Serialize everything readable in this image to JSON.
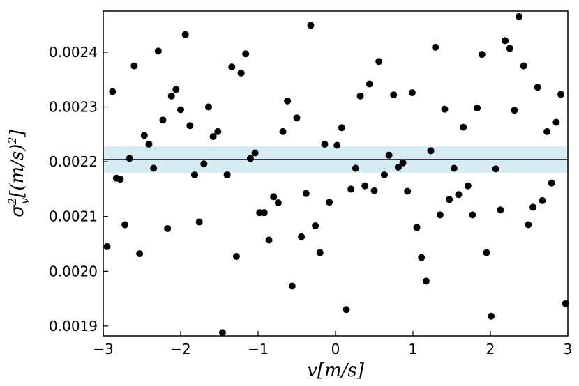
{
  "chart_data": {
    "type": "scatter",
    "xlabel": "v[m/s]",
    "ylabel": "σ_v^2[(m/s)^2]",
    "xlim": [
      -3,
      3
    ],
    "ylim": [
      0.001882,
      0.002475
    ],
    "x_ticks": [
      -3,
      -2,
      -1,
      0,
      1,
      2,
      3
    ],
    "x_tick_labels": [
      "−3",
      "−2",
      "−1",
      "0",
      "1",
      "2",
      "3"
    ],
    "y_ticks": [
      0.0019,
      0.002,
      0.0021,
      0.0022,
      0.0023,
      0.0024
    ],
    "y_tick_labels": [
      "0.0019",
      "0.0020",
      "0.0021",
      "0.0022",
      "0.0023",
      "0.0024"
    ],
    "grid": false,
    "mean_line": 0.002204,
    "band": [
      0.00218,
      0.002228
    ],
    "colors": {
      "points": "#000000",
      "line": "#000000",
      "band": "#add8e6"
    },
    "points": [
      [
        -2.95,
        0.002045
      ],
      [
        -2.88,
        0.002328
      ],
      [
        -2.83,
        0.00217
      ],
      [
        -2.78,
        0.002168
      ],
      [
        -2.72,
        0.002085
      ],
      [
        -2.66,
        0.002206
      ],
      [
        -2.6,
        0.002375
      ],
      [
        -2.53,
        0.002032
      ],
      [
        -2.47,
        0.002248
      ],
      [
        -2.41,
        0.002232
      ],
      [
        -2.35,
        0.002188
      ],
      [
        -2.29,
        0.002402
      ],
      [
        -2.23,
        0.002276
      ],
      [
        -2.17,
        0.002078
      ],
      [
        -2.12,
        0.00232
      ],
      [
        -2.06,
        0.002332
      ],
      [
        -2.0,
        0.002295
      ],
      [
        -1.94,
        0.002432
      ],
      [
        -1.88,
        0.002266
      ],
      [
        -1.82,
        0.002176
      ],
      [
        -1.76,
        0.00209
      ],
      [
        -1.7,
        0.002196
      ],
      [
        -1.64,
        0.0023
      ],
      [
        -1.58,
        0.002246
      ],
      [
        -1.52,
        0.002255
      ],
      [
        -1.46,
        0.001888
      ],
      [
        -1.4,
        0.002176
      ],
      [
        -1.34,
        0.002373
      ],
      [
        -1.28,
        0.002027
      ],
      [
        -1.22,
        0.002362
      ],
      [
        -1.16,
        0.002397
      ],
      [
        -1.1,
        0.002206
      ],
      [
        -1.04,
        0.002216
      ],
      [
        -0.98,
        0.002107
      ],
      [
        -0.92,
        0.002107
      ],
      [
        -0.86,
        0.002057
      ],
      [
        -0.8,
        0.002136
      ],
      [
        -0.74,
        0.002125
      ],
      [
        -0.68,
        0.002255
      ],
      [
        -0.62,
        0.002311
      ],
      [
        -0.56,
        0.001973
      ],
      [
        -0.5,
        0.00228
      ],
      [
        -0.44,
        0.002063
      ],
      [
        -0.38,
        0.002142
      ],
      [
        -0.32,
        0.002449
      ],
      [
        -0.26,
        0.002083
      ],
      [
        -0.2,
        0.002034
      ],
      [
        -0.14,
        0.002232
      ],
      [
        -0.08,
        0.002126
      ],
      [
        0.02,
        0.00223
      ],
      [
        0.08,
        0.002262
      ],
      [
        0.14,
        0.00193
      ],
      [
        0.2,
        0.00215
      ],
      [
        0.26,
        0.002188
      ],
      [
        0.32,
        0.00232
      ],
      [
        0.38,
        0.002156
      ],
      [
        0.44,
        0.002342
      ],
      [
        0.5,
        0.002147
      ],
      [
        0.56,
        0.002383
      ],
      [
        0.63,
        0.002176
      ],
      [
        0.69,
        0.002212
      ],
      [
        0.75,
        0.002322
      ],
      [
        0.81,
        0.00219
      ],
      [
        0.87,
        0.002198
      ],
      [
        0.93,
        0.002146
      ],
      [
        0.99,
        0.002326
      ],
      [
        1.05,
        0.00208
      ],
      [
        1.11,
        0.002025
      ],
      [
        1.17,
        0.001982
      ],
      [
        1.23,
        0.00222
      ],
      [
        1.29,
        0.002409
      ],
      [
        1.35,
        0.002103
      ],
      [
        1.41,
        0.002296
      ],
      [
        1.47,
        0.002131
      ],
      [
        1.53,
        0.002188
      ],
      [
        1.59,
        0.00214
      ],
      [
        1.65,
        0.002263
      ],
      [
        1.71,
        0.002156
      ],
      [
        1.77,
        0.002103
      ],
      [
        1.83,
        0.002298
      ],
      [
        1.89,
        0.002396
      ],
      [
        1.95,
        0.002034
      ],
      [
        2.01,
        0.001918
      ],
      [
        2.07,
        0.002187
      ],
      [
        2.13,
        0.002112
      ],
      [
        2.19,
        0.002421
      ],
      [
        2.25,
        0.002407
      ],
      [
        2.31,
        0.002294
      ],
      [
        2.37,
        0.002465
      ],
      [
        2.43,
        0.002375
      ],
      [
        2.49,
        0.002085
      ],
      [
        2.55,
        0.002117
      ],
      [
        2.61,
        0.002336
      ],
      [
        2.67,
        0.002129
      ],
      [
        2.73,
        0.002255
      ],
      [
        2.79,
        0.002161
      ],
      [
        2.85,
        0.002272
      ],
      [
        2.91,
        0.002323
      ],
      [
        2.97,
        0.001941
      ]
    ]
  }
}
